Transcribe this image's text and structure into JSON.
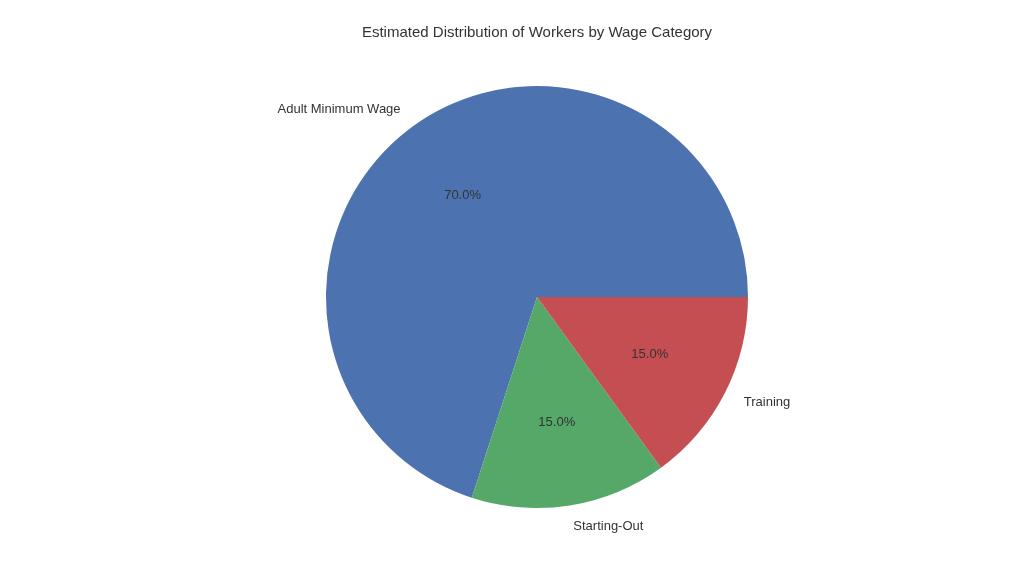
{
  "chart_data": {
    "type": "pie",
    "title": "Estimated Distribution of Workers by Wage Category",
    "categories": [
      "Adult Minimum Wage",
      "Starting-Out",
      "Training"
    ],
    "values": [
      70,
      15,
      15
    ],
    "colors": [
      "#4c72b0",
      "#55a868",
      "#c44e52"
    ],
    "value_labels": [
      "70.0%",
      "15.0%",
      "15.0%"
    ],
    "legend": false
  }
}
